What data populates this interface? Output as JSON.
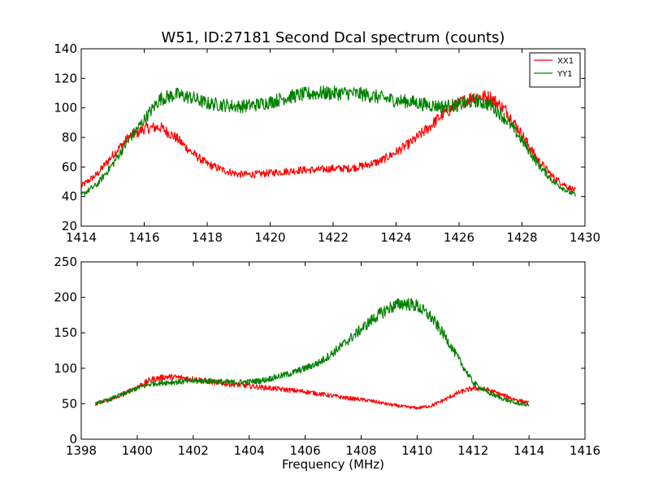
{
  "colors": {
    "xx": "#ff0000",
    "yy": "#008000"
  },
  "chart_data": [
    {
      "type": "line",
      "title": "W51, ID:27181 Second Dcal spectrum (counts)",
      "xlabel": "",
      "ylabel": "",
      "xlim": [
        1414,
        1430
      ],
      "ylim": [
        20,
        140
      ],
      "xticks": [
        "1414",
        "1416",
        "1418",
        "1420",
        "1422",
        "1424",
        "1426",
        "1428",
        "1430"
      ],
      "yticks": [
        "20",
        "40",
        "60",
        "80",
        "100",
        "120",
        "140"
      ],
      "grid": false,
      "legend": "top-right",
      "series": [
        {
          "name": "XX1",
          "color": "#ff0000",
          "x": [
            1414.0,
            1414.5,
            1415.0,
            1415.5,
            1416.0,
            1416.5,
            1417.0,
            1417.5,
            1418.0,
            1418.5,
            1419.0,
            1419.5,
            1420.0,
            1420.5,
            1421.0,
            1421.5,
            1422.0,
            1422.5,
            1423.0,
            1423.5,
            1424.0,
            1424.5,
            1425.0,
            1425.5,
            1426.0,
            1426.5,
            1427.0,
            1427.5,
            1428.0,
            1428.5,
            1429.0,
            1429.5,
            1429.7
          ],
          "y": [
            47,
            55,
            68,
            80,
            86,
            87,
            80,
            70,
            62,
            58,
            55,
            55,
            56,
            57,
            58,
            58,
            59,
            59,
            61,
            64,
            70,
            77,
            86,
            96,
            103,
            108,
            107,
            98,
            82,
            65,
            53,
            46,
            44
          ]
        },
        {
          "name": "YY1",
          "color": "#008000",
          "x": [
            1414.0,
            1414.5,
            1415.0,
            1415.5,
            1416.0,
            1416.5,
            1417.0,
            1417.5,
            1418.0,
            1418.5,
            1419.0,
            1419.5,
            1420.0,
            1420.5,
            1421.0,
            1421.5,
            1422.0,
            1422.5,
            1423.0,
            1423.5,
            1424.0,
            1424.5,
            1425.0,
            1425.5,
            1426.0,
            1426.5,
            1427.0,
            1427.5,
            1428.0,
            1428.5,
            1429.0,
            1429.5,
            1429.7
          ],
          "y": [
            41,
            48,
            62,
            78,
            92,
            106,
            109,
            107,
            103,
            102,
            101,
            102,
            104,
            107,
            109,
            110,
            110,
            110,
            109,
            107,
            105,
            104,
            102,
            101,
            102,
            105,
            102,
            92,
            78,
            62,
            50,
            43,
            41
          ]
        }
      ]
    },
    {
      "type": "line",
      "title": "",
      "xlabel": "Frequency (MHz)",
      "ylabel": "",
      "xlim": [
        1398,
        1416
      ],
      "ylim": [
        0,
        250
      ],
      "xticks": [
        "1398",
        "1400",
        "1402",
        "1404",
        "1406",
        "1408",
        "1410",
        "1412",
        "1414",
        "1416"
      ],
      "yticks": [
        "0",
        "50",
        "100",
        "150",
        "200",
        "250"
      ],
      "grid": false,
      "series": [
        {
          "name": "",
          "color": "#ff0000",
          "x": [
            1398.5,
            1399.0,
            1399.5,
            1400.0,
            1400.5,
            1401.0,
            1401.5,
            1402.0,
            1402.5,
            1403.0,
            1403.5,
            1404.0,
            1404.5,
            1405.0,
            1405.5,
            1406.0,
            1406.5,
            1407.0,
            1407.5,
            1408.0,
            1408.5,
            1409.0,
            1409.5,
            1410.0,
            1410.5,
            1411.0,
            1411.5,
            1412.0,
            1412.5,
            1413.0,
            1413.5,
            1414.0
          ],
          "y": [
            50,
            55,
            63,
            74,
            84,
            88,
            87,
            85,
            82,
            79,
            77,
            75,
            73,
            71,
            69,
            67,
            64,
            61,
            58,
            56,
            53,
            49,
            46,
            44,
            47,
            56,
            66,
            72,
            70,
            63,
            56,
            51
          ]
        },
        {
          "name": "",
          "color": "#008000",
          "x": [
            1398.5,
            1399.0,
            1399.5,
            1400.0,
            1400.5,
            1401.0,
            1401.5,
            1402.0,
            1402.5,
            1403.0,
            1403.5,
            1404.0,
            1404.5,
            1405.0,
            1405.5,
            1406.0,
            1406.5,
            1407.0,
            1407.5,
            1408.0,
            1408.5,
            1409.0,
            1409.5,
            1410.0,
            1410.5,
            1411.0,
            1411.5,
            1412.0,
            1412.5,
            1413.0,
            1413.5,
            1414.0
          ],
          "y": [
            50,
            56,
            64,
            72,
            78,
            80,
            81,
            82,
            82,
            81,
            80,
            81,
            83,
            88,
            93,
            100,
            108,
            122,
            138,
            155,
            172,
            185,
            192,
            188,
            172,
            145,
            112,
            80,
            66,
            58,
            51,
            48
          ]
        }
      ]
    }
  ]
}
